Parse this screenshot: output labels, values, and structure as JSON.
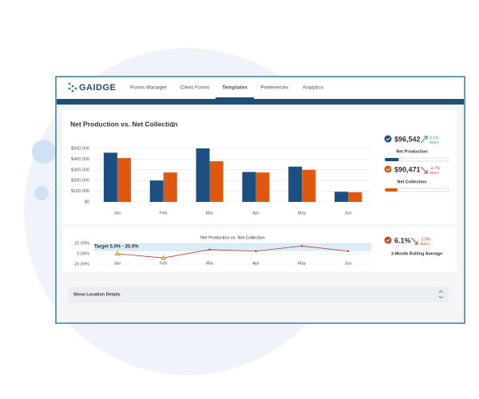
{
  "nav": {
    "logo": "GAIDGE",
    "items": [
      "Forms Manager",
      "Client Forms",
      "Templates",
      "Preferences",
      "Analytics"
    ],
    "active": 2
  },
  "card_title": "Net Production vs. Net Collection",
  "chart_data": [
    {
      "type": "bar",
      "categories": [
        "Jan",
        "Feb",
        "Mar",
        "Apr",
        "May",
        "Jun"
      ],
      "series": [
        {
          "name": "Net Production",
          "color": "#1b4f7f",
          "values": [
            460000,
            200000,
            500000,
            280000,
            330000,
            95000
          ]
        },
        {
          "name": "Net Collection",
          "color": "#e0580f",
          "values": [
            410000,
            275000,
            380000,
            275000,
            300000,
            90000
          ]
        }
      ],
      "ylim": [
        0,
        500000
      ],
      "yticks": [
        {
          "value": 0,
          "label": "$0"
        },
        {
          "value": 100000,
          "label": "$100,000"
        },
        {
          "value": 200000,
          "label": "$200,000"
        },
        {
          "value": 300000,
          "label": "$300,000"
        },
        {
          "value": 400000,
          "label": "$400,000"
        },
        {
          "value": 500000,
          "label": "$500,000"
        }
      ],
      "grid": true
    },
    {
      "type": "line",
      "title": "Net Production vs. Net Collection",
      "categories": [
        "Jan",
        "Feb",
        "Mar",
        "Apr",
        "May",
        "Jun"
      ],
      "values": [
        0,
        -8,
        8,
        5,
        15,
        5
      ],
      "color": "#c0392b",
      "target": {
        "label": "Target 5.0% - 20.0%",
        "range": [
          5,
          20
        ]
      },
      "ylim": [
        -20,
        20
      ],
      "yticks": [
        {
          "value": -20,
          "label": "-20.00%"
        },
        {
          "value": 0,
          "label": "0.00%"
        },
        {
          "value": 20,
          "label": "20.00%"
        }
      ],
      "grid": true
    }
  ],
  "kpis": [
    {
      "value": "$96,542",
      "change": "3.1%",
      "basis": "SMLY",
      "trend": "up",
      "trend_color": "#2e9e44",
      "icon_color": "#1b4f7f",
      "progress": 22
    },
    {
      "value": "$90,471",
      "change": "-4.7%",
      "basis": "SMLY",
      "trend": "down",
      "trend_color": "#d93a2b",
      "icon_color": "#e0580f",
      "progress": 20
    },
    {
      "value": "6.1%",
      "change": "-2.5%",
      "basis": "SMLY",
      "trend": "down",
      "trend_color": "#d93a2b",
      "icon_color": "#d93a2b",
      "label": "3-Month Rolling Average"
    }
  ],
  "details": {
    "label": "Show Location Details"
  }
}
